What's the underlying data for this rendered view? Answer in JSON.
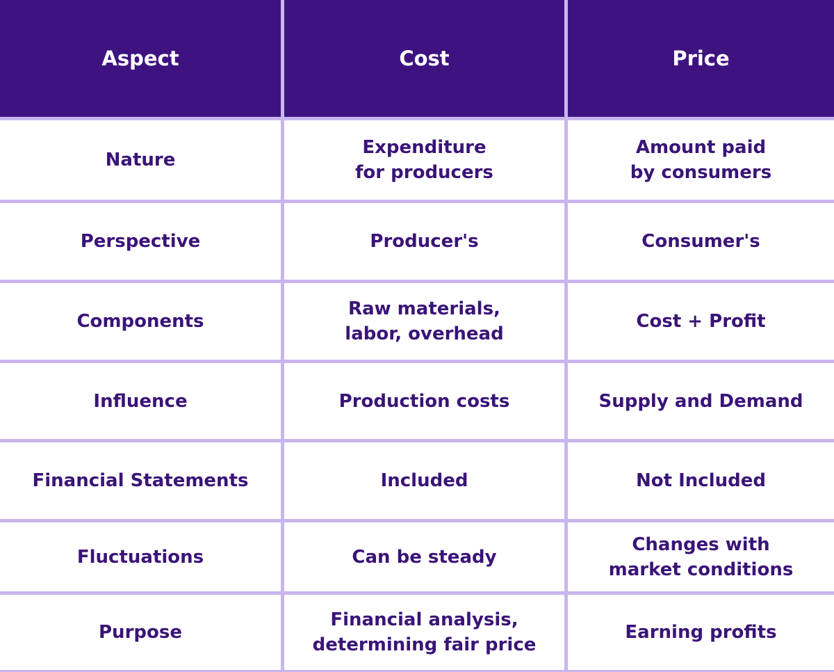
{
  "table": {
    "header": [
      "Aspect",
      "Cost",
      "Price"
    ],
    "rows": [
      [
        [
          "Nature"
        ],
        [
          "Expenditure",
          "for producers"
        ],
        [
          "Amount paid",
          "by consumers"
        ]
      ],
      [
        [
          "Perspective"
        ],
        [
          "Producer's"
        ],
        [
          "Consumer's"
        ]
      ],
      [
        [
          "Components"
        ],
        [
          "Raw materials,",
          "labor, overhead"
        ],
        [
          "Cost + Profit"
        ]
      ],
      [
        [
          "Influence"
        ],
        [
          "Production costs"
        ],
        [
          "Supply and Demand"
        ]
      ],
      [
        [
          "Financial Statements"
        ],
        [
          "Included"
        ],
        [
          "Not Included"
        ]
      ],
      [
        [
          "Fluctuations"
        ],
        [
          "Can be steady"
        ],
        [
          "Changes with",
          "market conditions"
        ]
      ],
      [
        [
          "Purpose"
        ],
        [
          "Financial analysis,",
          "determining fair price"
        ],
        [
          "Earning profits"
        ]
      ]
    ]
  }
}
